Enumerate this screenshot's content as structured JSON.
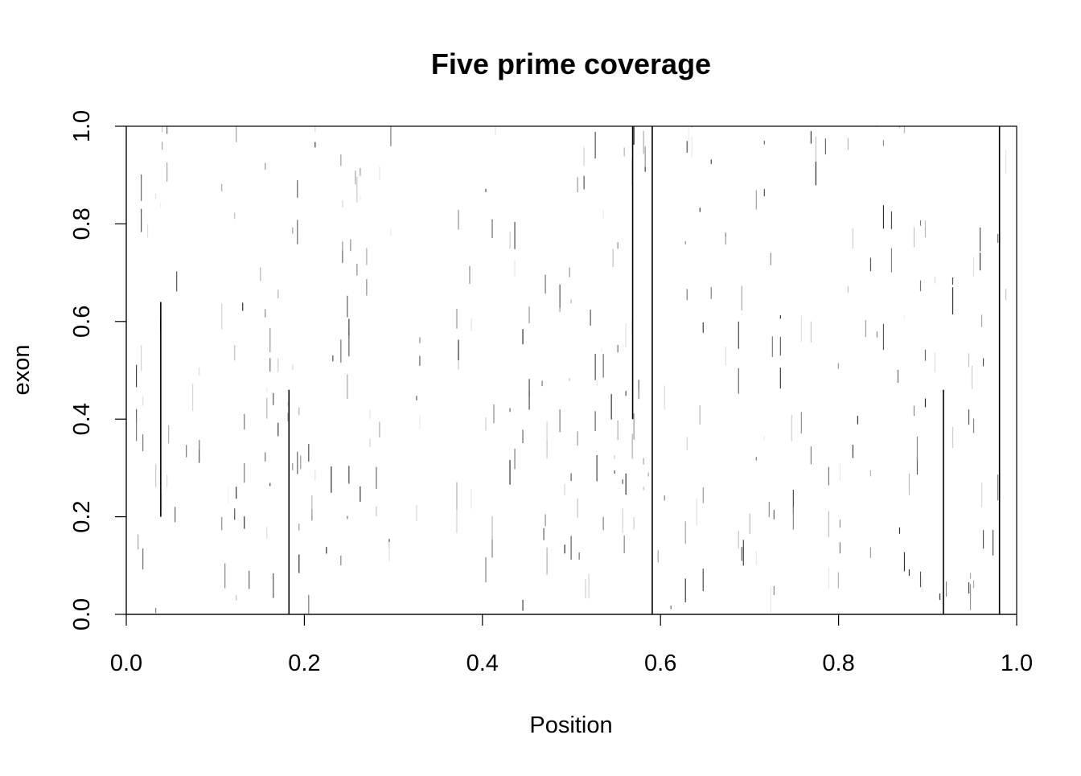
{
  "chart_data": {
    "type": "heatmap",
    "title": "Five prime coverage",
    "xlabel": "Position",
    "ylabel": "exon",
    "xlim": [
      0,
      1
    ],
    "ylim": [
      0,
      1
    ],
    "x_ticks": [
      "0.0",
      "0.2",
      "0.4",
      "0.6",
      "0.8",
      "1.0"
    ],
    "y_ticks": [
      "0.0",
      "0.2",
      "0.4",
      "0.6",
      "0.8",
      "1.0"
    ],
    "x_tick_values": [
      0,
      0.2,
      0.4,
      0.6,
      0.8,
      1.0
    ],
    "y_tick_values": [
      0,
      0.2,
      0.4,
      0.6,
      0.8,
      1.0
    ],
    "color_scale": [
      "#ffffff",
      "#000000"
    ],
    "grid": false,
    "legend": "none",
    "prominent_columns": [
      {
        "x": 0.038,
        "y0": 0.2,
        "y1": 0.64
      },
      {
        "x": 0.182,
        "y0": 0.0,
        "y1": 0.46
      },
      {
        "x": 0.568,
        "y0": 0.4,
        "y1": 1.0
      },
      {
        "x": 0.59,
        "y0": 0.0,
        "y1": 1.0
      },
      {
        "x": 0.917,
        "y0": 0.0,
        "y1": 0.46
      },
      {
        "x": 0.98,
        "y0": 0.0,
        "y1": 1.0
      }
    ]
  }
}
